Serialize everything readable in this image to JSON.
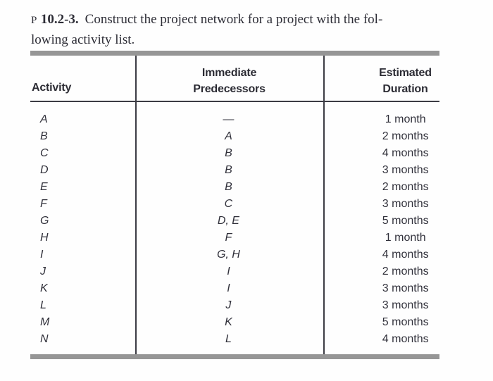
{
  "problem": {
    "label": "P",
    "number": "10.2-3.",
    "line1": "Construct the project network for a project with the fol-",
    "line2": "lowing activity list."
  },
  "table": {
    "headers": {
      "activity": "Activity",
      "pred_line1": "Immediate",
      "pred_line2": "Predecessors",
      "dur_line1": "Estimated",
      "dur_line2": "Duration"
    },
    "rows": [
      {
        "activity": "A",
        "pred": "—",
        "duration": "1 month"
      },
      {
        "activity": "B",
        "pred": "A",
        "duration": "2 months"
      },
      {
        "activity": "C",
        "pred": "B",
        "duration": "4 months"
      },
      {
        "activity": "D",
        "pred": "B",
        "duration": "3 months"
      },
      {
        "activity": "E",
        "pred": "B",
        "duration": "2 months"
      },
      {
        "activity": "F",
        "pred": "C",
        "duration": "3 months"
      },
      {
        "activity": "G",
        "pred": "D, E",
        "duration": "5 months"
      },
      {
        "activity": "H",
        "pred": "F",
        "duration": "1 month"
      },
      {
        "activity": "I",
        "pred": "G, H",
        "duration": "4 months"
      },
      {
        "activity": "J",
        "pred": "I",
        "duration": "2 months"
      },
      {
        "activity": "K",
        "pred": "I",
        "duration": "3 months"
      },
      {
        "activity": "L",
        "pred": "J",
        "duration": "3 months"
      },
      {
        "activity": "M",
        "pred": "K",
        "duration": "5 months"
      },
      {
        "activity": "N",
        "pred": "L",
        "duration": "4 months"
      }
    ]
  },
  "colors": {
    "text": "#30303a",
    "rule": "#3c3c44",
    "bar": "#969696",
    "background": "#fefefe"
  }
}
